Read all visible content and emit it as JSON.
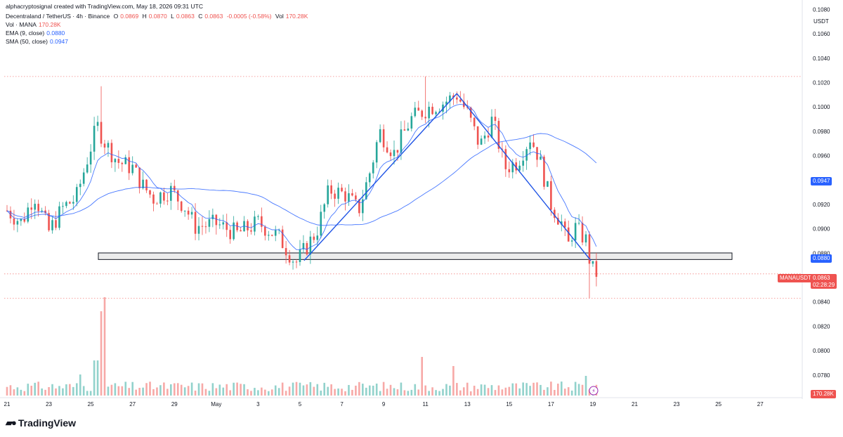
{
  "credit": "alphacryptosignal created with TradingView.com, May 18, 2026 09:31 UTC",
  "header": {
    "pair": "Decentraland / TetherUS · 4h · Binance",
    "o_label": "O",
    "o": "0.0869",
    "h_label": "H",
    "h": "0.0870",
    "l_label": "L",
    "l": "0.0863",
    "c_label": "C",
    "c": "0.0863",
    "change": "-0.0005 (-0.58%)",
    "vol_label": "Vol",
    "vol": "170.28K"
  },
  "legend": {
    "vol_name": "Vol · MANA",
    "vol_value": "170.28K",
    "ema_name": "EMA (9, close)",
    "ema_value": "0.0880",
    "sma_name": "SMA (50, close)",
    "sma_value": "0.0947"
  },
  "axis_unit": "USDT",
  "tags": {
    "sma": "0.0947",
    "ema": "0.0880",
    "symbol": "MANAUSDT",
    "price": "0.0863",
    "countdown": "02:28:29",
    "volume": "170.28K"
  },
  "brand": "TradingView",
  "icons": {
    "logo": "tradingview-logo-icon",
    "flash": "lightning-icon"
  },
  "colors": {
    "up": "#26a69a",
    "down": "#ef5350",
    "ema": "#2962ff",
    "sma": "#2962ff",
    "trend": "#1e53e5",
    "zone_fill": "#ececec"
  },
  "chart_data": {
    "type": "candlestick",
    "timeframe": "4h",
    "y_ticks": [
      "0.1080",
      "0.1060",
      "0.1040",
      "0.1020",
      "0.1000",
      "0.0980",
      "0.0960",
      "0.0940",
      "0.0920",
      "0.0900",
      "0.0880",
      "0.0860",
      "0.0840",
      "0.0820",
      "0.0800",
      "0.0780"
    ],
    "ylim": [
      0.0762,
      0.1082
    ],
    "x_ticks": [
      "21",
      "23",
      "25",
      "27",
      "29",
      "May",
      "3",
      "5",
      "7",
      "9",
      "11",
      "13",
      "15",
      "17",
      "19",
      "21",
      "23",
      "25",
      "27"
    ],
    "x_range_days": [
      0,
      37
    ],
    "support_zone": [
      0.08748,
      0.08802
    ],
    "dotted_levels": [
      0.1025,
      0.0863,
      0.0843
    ],
    "candle_anchors": [
      {
        "day": 0.0,
        "price": 0.0915
      },
      {
        "day": 0.7,
        "price": 0.0905
      },
      {
        "day": 1.3,
        "price": 0.0928
      },
      {
        "day": 2.0,
        "price": 0.0898
      },
      {
        "day": 2.7,
        "price": 0.0918
      },
      {
        "day": 3.3,
        "price": 0.0925
      },
      {
        "day": 3.8,
        "price": 0.0955
      },
      {
        "day": 4.3,
        "price": 0.0985
      },
      {
        "day": 4.7,
        "price": 0.097
      },
      {
        "day": 5.3,
        "price": 0.0955
      },
      {
        "day": 6.0,
        "price": 0.095
      },
      {
        "day": 6.5,
        "price": 0.0935
      },
      {
        "day": 7.0,
        "price": 0.0925
      },
      {
        "day": 7.8,
        "price": 0.0932
      },
      {
        "day": 8.5,
        "price": 0.0918
      },
      {
        "day": 9.0,
        "price": 0.0902
      },
      {
        "day": 10.0,
        "price": 0.0904
      },
      {
        "day": 11.0,
        "price": 0.0896
      },
      {
        "day": 12.0,
        "price": 0.0905
      },
      {
        "day": 13.0,
        "price": 0.0893
      },
      {
        "day": 13.8,
        "price": 0.0872
      },
      {
        "day": 14.2,
        "price": 0.0882
      },
      {
        "day": 14.8,
        "price": 0.0898
      },
      {
        "day": 15.4,
        "price": 0.0932
      },
      {
        "day": 16.2,
        "price": 0.0928
      },
      {
        "day": 16.8,
        "price": 0.0915
      },
      {
        "day": 17.4,
        "price": 0.095
      },
      {
        "day": 17.8,
        "price": 0.098
      },
      {
        "day": 18.5,
        "price": 0.0962
      },
      {
        "day": 19.3,
        "price": 0.099
      },
      {
        "day": 20.2,
        "price": 0.1
      },
      {
        "day": 20.8,
        "price": 0.1003
      },
      {
        "day": 21.5,
        "price": 0.101
      },
      {
        "day": 22.0,
        "price": 0.0995
      },
      {
        "day": 22.6,
        "price": 0.0968
      },
      {
        "day": 23.2,
        "price": 0.099
      },
      {
        "day": 23.8,
        "price": 0.095
      },
      {
        "day": 24.4,
        "price": 0.0955
      },
      {
        "day": 25.0,
        "price": 0.0975
      },
      {
        "day": 25.4,
        "price": 0.096
      },
      {
        "day": 26.0,
        "price": 0.092
      },
      {
        "day": 26.5,
        "price": 0.0905
      },
      {
        "day": 26.8,
        "price": 0.0885
      },
      {
        "day": 27.1,
        "price": 0.0902
      },
      {
        "day": 27.5,
        "price": 0.0894
      },
      {
        "day": 27.7,
        "price": 0.089
      },
      {
        "day": 27.9,
        "price": 0.0868
      },
      {
        "day": 28.2,
        "price": 0.0863
      }
    ],
    "trendlines": [
      {
        "from": {
          "day": 14.2,
          "price": 0.0874
        },
        "to": {
          "day": 21.5,
          "price": 0.1011
        }
      },
      {
        "from": {
          "day": 21.5,
          "price": 0.1011
        },
        "to": {
          "day": 27.9,
          "price": 0.0874
        }
      }
    ],
    "series": [
      {
        "name": "EMA (9, close)",
        "last": 0.088
      },
      {
        "name": "SMA (50, close)",
        "last": 0.0947
      }
    ]
  }
}
